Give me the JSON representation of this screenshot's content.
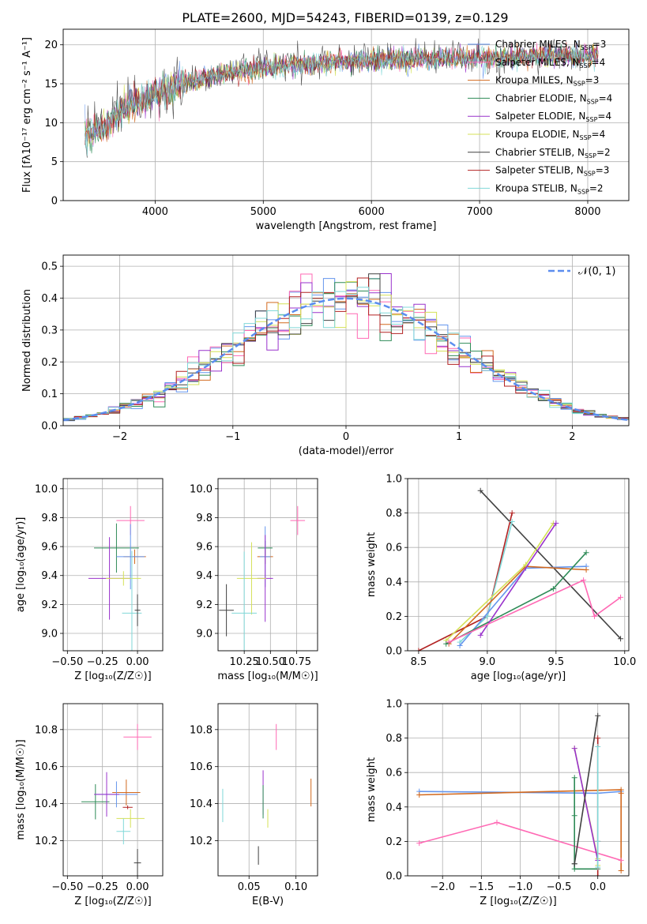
{
  "title": "PLATE=2600, MJD=54243, FIBERID=0139, z=0.129",
  "chart_data": [
    {
      "id": "spectrum",
      "type": "line",
      "xlabel": "wavelength [Angstrom, rest frame]",
      "ylabel": "Flux [fλ10⁻¹⁷ erg cm⁻² s⁻¹ A⁻¹]",
      "xlim": [
        3150,
        8380
      ],
      "ylim": [
        0,
        22
      ],
      "xticks": [
        4000,
        5000,
        6000,
        7000,
        8000
      ],
      "yticks": [
        0,
        5,
        10,
        15,
        20
      ],
      "grid": true,
      "legend_position": "right",
      "x": [
        3350,
        3500,
        3600,
        3700,
        3800,
        3900,
        4000,
        4100,
        4200,
        4300,
        4500,
        4700,
        4900,
        5100,
        5300,
        5500,
        5700,
        5900,
        6100,
        6300,
        6500,
        6700,
        6900,
        7100,
        7300,
        7500,
        7700,
        7900,
        8100
      ],
      "series": [
        {
          "name": "Chabrier MILES, N_SSP=3",
          "color": "#6495ed",
          "y": [
            8.6,
            9.1,
            10.2,
            11.6,
            12.4,
            12.9,
            13.8,
            14.2,
            14.6,
            15.2,
            15.9,
            16.4,
            16.8,
            17.3,
            17.5,
            17.6,
            17.8,
            18.0,
            18.1,
            18.1,
            18.2,
            18.3,
            18.3,
            18.4,
            18.4,
            18.5,
            18.6,
            18.5,
            18.7
          ]
        },
        {
          "name": "Salpeter MILES, N_SSP=4",
          "color": "#ff69b4",
          "y": [
            8.5,
            9.2,
            10.3,
            11.7,
            12.5,
            13.0,
            13.9,
            14.3,
            14.7,
            15.3,
            16.0,
            16.5,
            16.9,
            17.4,
            17.6,
            17.7,
            17.9,
            18.1,
            18.2,
            18.2,
            18.3,
            18.4,
            18.4,
            18.5,
            18.5,
            18.6,
            18.7,
            18.6,
            18.8
          ]
        },
        {
          "name": "Kroupa MILES, N_SSP=3",
          "color": "#d2691e",
          "y": [
            8.6,
            9.0,
            10.1,
            11.5,
            12.3,
            12.8,
            13.7,
            14.1,
            14.5,
            15.1,
            15.8,
            16.3,
            16.7,
            17.2,
            17.4,
            17.5,
            17.7,
            17.9,
            18.0,
            18.0,
            18.1,
            18.2,
            18.2,
            18.3,
            18.3,
            18.4,
            18.5,
            18.4,
            18.6
          ]
        },
        {
          "name": "Chabrier ELODIE, N_SSP=4",
          "color": "#2e8b57",
          "y": [
            8.7,
            9.1,
            10.2,
            11.6,
            12.4,
            12.9,
            13.8,
            14.2,
            14.6,
            15.2,
            15.9,
            16.4,
            16.8,
            17.3,
            17.5,
            17.6,
            17.8,
            18.0,
            18.1,
            18.1,
            18.2,
            18.3,
            18.3,
            18.4,
            18.4,
            18.5,
            18.6,
            18.5,
            18.7
          ]
        },
        {
          "name": "Salpeter ELODIE, N_SSP=4",
          "color": "#9932cc",
          "y": [
            8.6,
            9.2,
            10.2,
            11.6,
            12.4,
            12.9,
            13.8,
            14.2,
            14.6,
            15.2,
            15.9,
            16.4,
            16.8,
            17.3,
            17.5,
            17.6,
            17.8,
            18.0,
            18.1,
            18.1,
            18.2,
            18.3,
            18.3,
            18.4,
            18.4,
            18.5,
            18.6,
            18.5,
            18.7
          ]
        },
        {
          "name": "Kroupa ELODIE, N_SSP=4",
          "color": "#d4e157",
          "y": [
            8.6,
            9.1,
            10.2,
            11.6,
            12.4,
            12.9,
            13.8,
            14.2,
            14.6,
            15.2,
            15.9,
            16.4,
            16.8,
            17.3,
            17.5,
            17.6,
            17.8,
            18.0,
            18.1,
            18.1,
            18.2,
            18.3,
            18.3,
            18.4,
            18.4,
            18.5,
            18.6,
            18.5,
            18.7
          ]
        },
        {
          "name": "Chabrier STELIB, N_SSP=2",
          "color": "#404040",
          "y": [
            8.4,
            9.3,
            10.4,
            11.4,
            12.6,
            12.7,
            14.0,
            14.0,
            14.8,
            15.0,
            16.1,
            16.2,
            17.0,
            17.1,
            17.7,
            17.4,
            18.0,
            17.8,
            18.3,
            17.9,
            18.4,
            18.1,
            18.5,
            18.2,
            18.6,
            18.3,
            18.8,
            18.3,
            18.9
          ]
        },
        {
          "name": "Salpeter STELIB, N_SSP=3",
          "color": "#b22222",
          "y": [
            8.5,
            9.2,
            10.3,
            11.5,
            12.5,
            12.8,
            13.9,
            14.1,
            14.7,
            15.1,
            16.0,
            16.3,
            16.9,
            17.2,
            17.6,
            17.5,
            17.9,
            17.9,
            18.2,
            18.0,
            18.3,
            18.2,
            18.4,
            18.3,
            18.5,
            18.4,
            18.7,
            18.4,
            18.8
          ]
        },
        {
          "name": "Kroupa STELIB, N_SSP=2",
          "color": "#80d8d8",
          "y": [
            8.6,
            9.1,
            10.3,
            11.6,
            12.5,
            12.9,
            13.8,
            14.2,
            14.7,
            15.2,
            15.9,
            16.4,
            16.9,
            17.3,
            17.5,
            17.6,
            17.8,
            18.0,
            18.1,
            18.1,
            18.2,
            18.3,
            18.3,
            18.4,
            18.4,
            18.5,
            18.6,
            18.5,
            18.7
          ]
        }
      ]
    },
    {
      "id": "residuals",
      "type": "line",
      "xlabel": "(data-model)/error",
      "ylabel": "Normed distribution",
      "xlim": [
        -2.5,
        2.5
      ],
      "ylim": [
        0,
        0.535
      ],
      "xticks": [
        -2,
        -1,
        0,
        1,
        2
      ],
      "yticks": [
        0.0,
        0.1,
        0.2,
        0.3,
        0.4,
        0.5
      ],
      "grid": true,
      "legend_position": "top-right",
      "legend_label": "𝒩(0, 1)",
      "reference_color": "#5b8def",
      "bin_width": 0.1
    },
    {
      "id": "age-vs-Z",
      "type": "scatter",
      "xlabel": "Z [log₁₀(Z/Z☉)]",
      "ylabel": "age  [log₁₀(age/yr)]",
      "xlim": [
        -0.53,
        0.18
      ],
      "ylim": [
        8.88,
        10.07
      ],
      "xticks": [
        -0.5,
        -0.25,
        0.0
      ],
      "yticks": [
        9.0,
        9.2,
        9.4,
        9.6,
        9.8,
        10.0
      ],
      "grid": true,
      "points": [
        {
          "c": "#ff69b4",
          "x": -0.05,
          "y": 9.78,
          "ex": 0.2,
          "ey": 0.2
        },
        {
          "c": "#2e8b57",
          "x": -0.15,
          "y": 9.59,
          "ex": 0.32,
          "ey": 0.34
        },
        {
          "c": "#d2691e",
          "x": -0.02,
          "y": 9.53,
          "ex": 0.16,
          "ey": 0.1
        },
        {
          "c": "#6495ed",
          "x": -0.05,
          "y": 9.53,
          "ex": 0.2,
          "ey": 0.45
        },
        {
          "c": "#9932cc",
          "x": -0.2,
          "y": 9.38,
          "ex": 0.3,
          "ey": 0.57
        },
        {
          "c": "#d4e157",
          "x": -0.1,
          "y": 9.38,
          "ex": 0.25,
          "ey": 0.1
        },
        {
          "c": "#80d8d8",
          "x": -0.04,
          "y": 9.14,
          "ex": 0.14,
          "ey": 0.86
        },
        {
          "c": "#404040",
          "x": 0.0,
          "y": 9.16,
          "ex": 0.04,
          "ey": 0.22
        }
      ]
    },
    {
      "id": "age-vs-mass",
      "type": "scatter",
      "xlabel": "mass [log₁₀(M/M☉)]",
      "ylabel": "",
      "xlim": [
        10.0,
        10.95
      ],
      "ylim": [
        8.88,
        10.07
      ],
      "xticks": [
        10.25,
        10.5,
        10.75
      ],
      "yticks": [
        9.0,
        9.2,
        9.4,
        9.6,
        9.8,
        10.0
      ],
      "grid": true,
      "points": [
        {
          "c": "#ff69b4",
          "x": 10.76,
          "y": 9.78,
          "ex": 0.14,
          "ey": 0.2
        },
        {
          "c": "#2e8b57",
          "x": 10.45,
          "y": 9.59,
          "ex": 0.14,
          "ey": 0.1
        },
        {
          "c": "#d2691e",
          "x": 10.45,
          "y": 9.53,
          "ex": 0.15,
          "ey": 0.1
        },
        {
          "c": "#6495ed",
          "x": 10.45,
          "y": 9.53,
          "ex": 0.1,
          "ey": 0.42
        },
        {
          "c": "#9932cc",
          "x": 10.45,
          "y": 9.38,
          "ex": 0.15,
          "ey": 0.6
        },
        {
          "c": "#d4e157",
          "x": 10.32,
          "y": 9.38,
          "ex": 0.28,
          "ey": 0.5
        },
        {
          "c": "#80d8d8",
          "x": 10.25,
          "y": 9.14,
          "ex": 0.24,
          "ey": 0.85
        },
        {
          "c": "#404040",
          "x": 10.08,
          "y": 9.16,
          "ex": 0.14,
          "ey": 0.36
        }
      ]
    },
    {
      "id": "weight-vs-age",
      "type": "line",
      "xlabel": "age  [log₁₀(age/yr)]",
      "ylabel": "mass weight",
      "xlim": [
        8.42,
        10.03
      ],
      "ylim": [
        0.0,
        1.0
      ],
      "xticks": [
        8.5,
        9.0,
        9.5,
        10.0
      ],
      "yticks": [
        0.0,
        0.2,
        0.4,
        0.6,
        0.8,
        1.0
      ],
      "grid": true,
      "series": [
        {
          "c": "#404040",
          "x": [
            8.95,
            9.97
          ],
          "y": [
            0.93,
            0.07
          ]
        },
        {
          "c": "#b22222",
          "x": [
            8.5,
            9.0,
            9.18
          ],
          "y": [
            0.0,
            0.2,
            0.8
          ]
        },
        {
          "c": "#80d8d8",
          "x": [
            8.8,
            9.0,
            9.18
          ],
          "y": [
            0.05,
            0.2,
            0.75
          ]
        },
        {
          "c": "#6495ed",
          "x": [
            8.8,
            9.28,
            9.72
          ],
          "y": [
            0.03,
            0.48,
            0.49
          ]
        },
        {
          "c": "#d2691e",
          "x": [
            8.72,
            9.28,
            9.72
          ],
          "y": [
            0.04,
            0.49,
            0.47
          ]
        },
        {
          "c": "#d4e157",
          "x": [
            8.7,
            9.28,
            9.48
          ],
          "y": [
            0.06,
            0.5,
            0.74
          ]
        },
        {
          "c": "#2e8b57",
          "x": [
            8.7,
            9.48,
            9.72
          ],
          "y": [
            0.04,
            0.36,
            0.57
          ]
        },
        {
          "c": "#9932cc",
          "x": [
            8.95,
            9.5
          ],
          "y": [
            0.09,
            0.74
          ]
        },
        {
          "c": "#ff69b4",
          "x": [
            8.72,
            9.7,
            9.78,
            9.97
          ],
          "y": [
            0.05,
            0.41,
            0.2,
            0.31
          ]
        }
      ]
    },
    {
      "id": "mass-vs-Z",
      "type": "scatter",
      "xlabel": "Z [log₁₀(Z/Z☉)]",
      "ylabel": "mass [log₁₀(M/M☉)]",
      "xlim": [
        -0.53,
        0.18
      ],
      "ylim": [
        10.01,
        10.94
      ],
      "xticks": [
        -0.5,
        -0.25,
        0.0
      ],
      "yticks": [
        10.2,
        10.4,
        10.6,
        10.8
      ],
      "grid": true,
      "points": [
        {
          "c": "#ff69b4",
          "x": 0.0,
          "y": 10.76,
          "ex": 0.2,
          "ey": 0.14
        },
        {
          "c": "#d2691e",
          "x": -0.08,
          "y": 10.46,
          "ex": 0.2,
          "ey": 0.14
        },
        {
          "c": "#6495ed",
          "x": -0.15,
          "y": 10.45,
          "ex": 0.3,
          "ey": 0.14
        },
        {
          "c": "#2e8b57",
          "x": -0.3,
          "y": 10.41,
          "ex": 0.2,
          "ey": 0.19
        },
        {
          "c": "#9932cc",
          "x": -0.22,
          "y": 10.45,
          "ex": 0.18,
          "ey": 0.24
        },
        {
          "c": "#b22222",
          "x": -0.07,
          "y": 10.38,
          "ex": 0.07,
          "ey": 0.02
        },
        {
          "c": "#d4e157",
          "x": -0.05,
          "y": 10.32,
          "ex": 0.2,
          "ey": 0.1
        },
        {
          "c": "#80d8d8",
          "x": -0.1,
          "y": 10.25,
          "ex": 0.1,
          "ey": 0.14
        },
        {
          "c": "#404040",
          "x": 0.0,
          "y": 10.08,
          "ex": 0.05,
          "ey": 0.15
        }
      ]
    },
    {
      "id": "mass-vs-ebv",
      "type": "scatter",
      "xlabel": "E(B-V)",
      "ylabel": "",
      "xlim": [
        0.017,
        0.123
      ],
      "ylim": [
        10.01,
        10.94
      ],
      "xticks": [
        0.05,
        0.1
      ],
      "yticks": [
        10.2,
        10.4,
        10.6,
        10.8
      ],
      "grid": true,
      "points": [
        {
          "c": "#80d8d8",
          "x": 0.022,
          "y": 10.39,
          "ey": 0.18
        },
        {
          "c": "#404040",
          "x": 0.06,
          "y": 10.12,
          "ey": 0.1
        },
        {
          "c": "#9932cc",
          "x": 0.065,
          "y": 10.46,
          "ey": 0.24
        },
        {
          "c": "#2e8b57",
          "x": 0.065,
          "y": 10.41,
          "ey": 0.18
        },
        {
          "c": "#d4e157",
          "x": 0.07,
          "y": 10.32,
          "ey": 0.1
        },
        {
          "c": "#ff69b4",
          "x": 0.079,
          "y": 10.76,
          "ey": 0.14
        },
        {
          "c": "#d2691e",
          "x": 0.116,
          "y": 10.46,
          "ey": 0.15
        }
      ]
    },
    {
      "id": "weight-vs-Z",
      "type": "line",
      "xlabel": "Z [log₁₀(Z/Z☉)]",
      "ylabel": "mass weight",
      "xlim": [
        -2.45,
        0.4
      ],
      "ylim": [
        0.0,
        1.0
      ],
      "xticks": [
        -2.0,
        -1.5,
        -1.0,
        -0.5,
        0.0
      ],
      "yticks": [
        0.0,
        0.2,
        0.4,
        0.6,
        0.8,
        1.0
      ],
      "grid": true,
      "series": [
        {
          "c": "#6495ed",
          "x": [
            -2.3,
            0.0,
            0.3
          ],
          "y": [
            0.49,
            0.48,
            0.49
          ]
        },
        {
          "c": "#d2691e",
          "x": [
            -2.3,
            0.3,
            0.3,
            0.3
          ],
          "y": [
            0.47,
            0.5,
            0.48,
            0.03
          ]
        },
        {
          "c": "#ff69b4",
          "x": [
            -2.3,
            -1.3,
            0.3
          ],
          "y": [
            0.19,
            0.31,
            0.09
          ]
        },
        {
          "c": "#2e8b57",
          "x": [
            -0.3,
            -0.3,
            -0.3,
            0.0
          ],
          "y": [
            0.57,
            0.35,
            0.04,
            0.04
          ]
        },
        {
          "c": "#d4e157",
          "x": [
            -0.3,
            0.0,
            0.0
          ],
          "y": [
            0.74,
            0.1,
            0.06
          ]
        },
        {
          "c": "#9932cc",
          "x": [
            -0.3,
            0.0
          ],
          "y": [
            0.74,
            0.09
          ]
        },
        {
          "c": "#404040",
          "x": [
            -0.3,
            0.0,
            -0.3
          ],
          "y": [
            0.07,
            0.93,
            0.07
          ]
        },
        {
          "c": "#b22222",
          "x": [
            0.0,
            0.0,
            0.0
          ],
          "y": [
            0.8,
            0.2,
            0.0
          ]
        },
        {
          "c": "#80d8d8",
          "x": [
            0.0,
            0.0,
            0.0
          ],
          "y": [
            0.75,
            0.2,
            0.05
          ]
        }
      ]
    }
  ]
}
